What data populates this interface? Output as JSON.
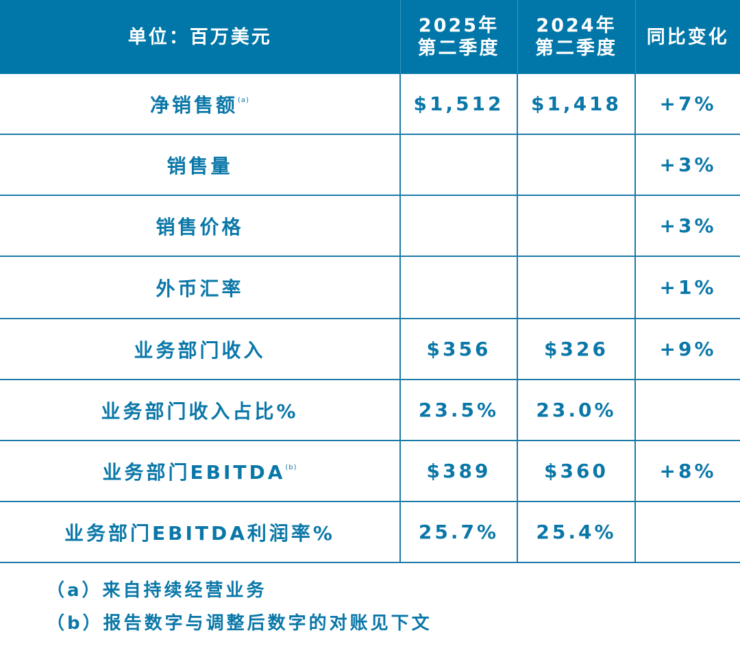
{
  "colors": {
    "header_bg": "#0077a8",
    "text": "#0a77a8"
  },
  "header": [
    "单位：百万美元",
    "2025年\n第二季度",
    "2024年\n第二季度",
    "同比变化"
  ],
  "header_lines": {
    "q2025": [
      "2025年",
      "第二季度"
    ],
    "q2024": [
      "2024年",
      "第二季度"
    ]
  },
  "rows": [
    {
      "label": "净销售额",
      "sup": "(a)",
      "q2025": "$1,512",
      "q2024": "$1,418",
      "yoy": "+7%"
    },
    {
      "label": "销售量",
      "sup": "",
      "q2025": "",
      "q2024": "",
      "yoy": "+3%"
    },
    {
      "label": "销售价格",
      "sup": "",
      "q2025": "",
      "q2024": "",
      "yoy": "+3%"
    },
    {
      "label": "外币汇率",
      "sup": "",
      "q2025": "",
      "q2024": "",
      "yoy": "+1%"
    },
    {
      "label": "业务部门收入",
      "sup": "",
      "q2025": "$356",
      "q2024": "$326",
      "yoy": "+9%"
    },
    {
      "label": "业务部门收入占比%",
      "sup": "",
      "q2025": "23.5%",
      "q2024": "23.0%",
      "yoy": ""
    },
    {
      "label": "业务部门EBITDA",
      "sup": "(b)",
      "q2025": "$389",
      "q2024": "$360",
      "yoy": "+8%"
    },
    {
      "label": "业务部门EBITDA利润率%",
      "sup": "",
      "q2025": "25.7%",
      "q2024": "25.4%",
      "yoy": ""
    }
  ],
  "notes": [
    "（a）来自持续经营业务",
    "（b）报告数字与调整后数字的对账见下文"
  ]
}
